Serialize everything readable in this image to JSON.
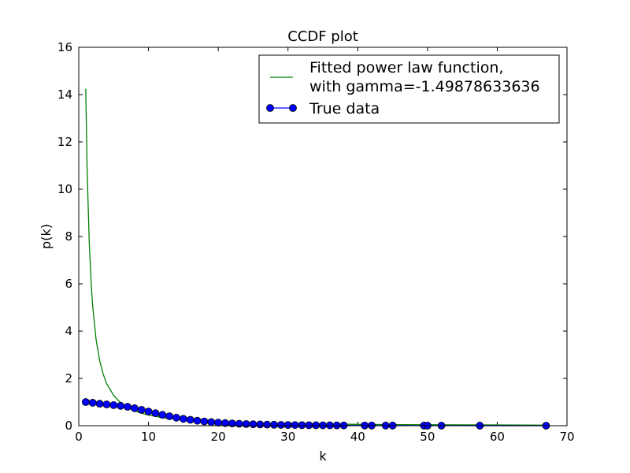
{
  "chart_data": {
    "type": "line",
    "title": "CCDF plot",
    "xlabel": "k",
    "ylabel": "p(k)",
    "xlim": [
      0,
      70
    ],
    "ylim": [
      0,
      16
    ],
    "xticks": [
      "0",
      "10",
      "20",
      "30",
      "40",
      "50",
      "60",
      "70"
    ],
    "yticks": [
      "0",
      "2",
      "4",
      "6",
      "8",
      "10",
      "12",
      "14",
      "16"
    ],
    "grid": false,
    "legend_position": "top-right",
    "series": [
      {
        "name": "Fitted power law function,\nwith gamma=-1.49878633636",
        "legend_lines": [
          "Fitted power law function,",
          "with gamma=-1.49878633636"
        ],
        "kind": "line",
        "color": "#008000",
        "x": [
          1,
          1.2,
          1.5,
          1.8,
          2,
          2.5,
          3,
          3.5,
          4,
          5,
          6,
          7,
          8,
          9,
          10,
          12,
          15,
          20,
          25,
          30,
          40,
          50,
          60,
          67
        ],
        "y": [
          14.25,
          10.85,
          7.77,
          5.92,
          5.04,
          3.61,
          2.75,
          2.18,
          1.78,
          1.28,
          0.97,
          0.77,
          0.63,
          0.53,
          0.45,
          0.34,
          0.25,
          0.16,
          0.11,
          0.087,
          0.056,
          0.04,
          0.031,
          0.026
        ]
      },
      {
        "name": "True data",
        "legend_lines": [
          "True data"
        ],
        "kind": "line-marker",
        "color": "#0000ff",
        "x": [
          1,
          2,
          3,
          4,
          5,
          6,
          7,
          8,
          9,
          10,
          11,
          12,
          13,
          14,
          15,
          16,
          17,
          18,
          19,
          20,
          21,
          22,
          23,
          24,
          25,
          26,
          27,
          28,
          29,
          30,
          31,
          32,
          33,
          34,
          35,
          36,
          37,
          38,
          41,
          42,
          44,
          45,
          49.5,
          50,
          52,
          57.5,
          67
        ],
        "y": [
          1.0,
          0.97,
          0.93,
          0.9,
          0.87,
          0.84,
          0.8,
          0.74,
          0.67,
          0.6,
          0.53,
          0.46,
          0.4,
          0.34,
          0.29,
          0.25,
          0.21,
          0.18,
          0.155,
          0.13,
          0.11,
          0.095,
          0.082,
          0.07,
          0.06,
          0.052,
          0.045,
          0.039,
          0.034,
          0.03,
          0.026,
          0.023,
          0.02,
          0.018,
          0.016,
          0.014,
          0.012,
          0.011,
          0.009,
          0.008,
          0.007,
          0.006,
          0.005,
          0.004,
          0.003,
          0.002,
          0.001
        ]
      }
    ]
  }
}
